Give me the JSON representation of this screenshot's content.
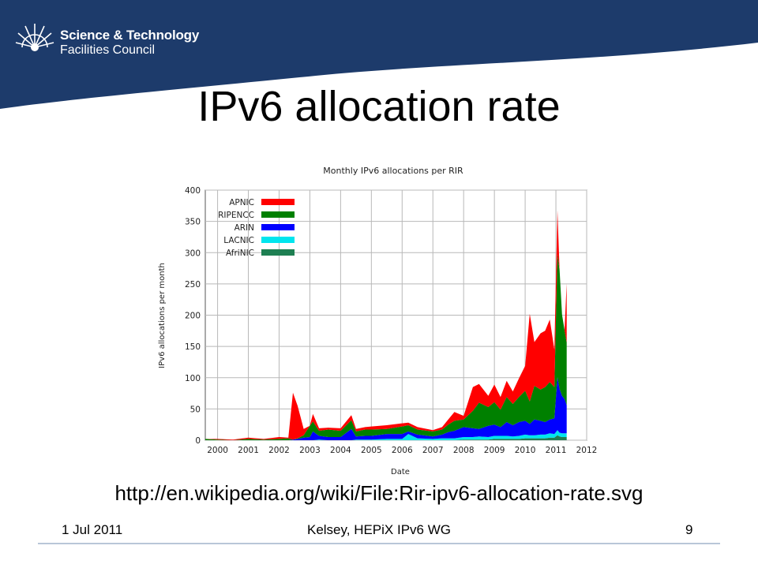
{
  "header": {
    "org_line1": "Science & Technology",
    "org_line2": "Facilities Council",
    "banner_color": "#1d3b6b",
    "logo_icon": "sunburst-logo-icon"
  },
  "slide": {
    "title": "IPv6 allocation rate",
    "url": "http://en.wikipedia.org/wiki/File:Rir-ipv6-allocation-rate.svg"
  },
  "footer": {
    "date": "1 Jul 2011",
    "center": "Kelsey, HEPiX IPv6 WG",
    "page": "9"
  },
  "chart_data": {
    "type": "area",
    "stacked": true,
    "title": "Monthly IPv6 allocations per RIR",
    "xlabel": "Date",
    "ylabel": "IPv6 allocations per month",
    "xlim": [
      1999.6,
      2012
    ],
    "ylim": [
      0,
      400
    ],
    "xticks": [
      "2000",
      "2001",
      "2002",
      "2003",
      "2004",
      "2005",
      "2006",
      "2007",
      "2008",
      "2009",
      "2010",
      "2011",
      "2012"
    ],
    "yticks": [
      "0",
      "50",
      "100",
      "150",
      "200",
      "250",
      "300",
      "350",
      "400"
    ],
    "grid": true,
    "legend_position": "top-left",
    "x": [
      1999.6,
      2000,
      2000.5,
      2001,
      2001.5,
      2002,
      2002.3,
      2002.45,
      2002.6,
      2002.8,
      2003,
      2003.1,
      2003.3,
      2003.6,
      2004,
      2004.35,
      2004.5,
      2004.8,
      2005,
      2005.5,
      2006,
      2006.2,
      2006.5,
      2007,
      2007.3,
      2007.5,
      2007.7,
      2008,
      2008.3,
      2008.5,
      2008.8,
      2009,
      2009.2,
      2009.4,
      2009.6,
      2009.8,
      2010,
      2010.15,
      2010.3,
      2010.5,
      2010.65,
      2010.8,
      2010.95,
      2011.05,
      2011.12,
      2011.2,
      2011.28,
      2011.35
    ],
    "series": [
      {
        "name": "AfriNIC",
        "color": "#1e7f52",
        "values": [
          0,
          0,
          0,
          0,
          0,
          0,
          0,
          0,
          0,
          0,
          0,
          0,
          0,
          0,
          0,
          0,
          0,
          0,
          0,
          0,
          0,
          0,
          0,
          0,
          0,
          0,
          0,
          1,
          1,
          1,
          1,
          2,
          2,
          2,
          2,
          2,
          3,
          3,
          3,
          3,
          3,
          4,
          4,
          8,
          6,
          5,
          5,
          5
        ]
      },
      {
        "name": "LACNIC",
        "color": "#00e5ee",
        "values": [
          0,
          0,
          0,
          0,
          0,
          0,
          0,
          0,
          0,
          0,
          0,
          0,
          1,
          0,
          0,
          0,
          1,
          1,
          1,
          2,
          2,
          10,
          3,
          2,
          3,
          3,
          3,
          4,
          4,
          5,
          4,
          5,
          5,
          5,
          4,
          5,
          6,
          5,
          5,
          6,
          6,
          7,
          6,
          8,
          6,
          6,
          6,
          6
        ]
      },
      {
        "name": "ARIN",
        "color": "#0000ff",
        "values": [
          0,
          0,
          0,
          0,
          0,
          0,
          0,
          1,
          2,
          4,
          5,
          14,
          6,
          5,
          5,
          18,
          5,
          6,
          6,
          8,
          8,
          4,
          6,
          4,
          6,
          10,
          12,
          16,
          14,
          12,
          18,
          18,
          14,
          22,
          18,
          22,
          22,
          18,
          25,
          22,
          20,
          22,
          25,
          85,
          70,
          60,
          55,
          45
        ]
      },
      {
        "name": "RIPENCC",
        "color": "#008000",
        "values": [
          2,
          1,
          0,
          2,
          1,
          2,
          3,
          0,
          1,
          4,
          18,
          16,
          8,
          12,
          10,
          14,
          8,
          10,
          10,
          8,
          12,
          10,
          8,
          8,
          8,
          12,
          16,
          12,
          28,
          42,
          30,
          36,
          28,
          40,
          34,
          40,
          48,
          36,
          54,
          50,
          56,
          60,
          50,
          197,
          190,
          130,
          110,
          100
        ]
      },
      {
        "name": "APNIC",
        "color": "#ff0000",
        "values": [
          0,
          1,
          1,
          2,
          1,
          3,
          1,
          75,
          52,
          10,
          0,
          12,
          4,
          3,
          4,
          8,
          4,
          4,
          5,
          6,
          5,
          4,
          4,
          2,
          4,
          8,
          14,
          6,
          38,
          30,
          18,
          28,
          20,
          26,
          20,
          30,
          40,
          140,
          70,
          90,
          90,
          100,
          60,
          70,
          0,
          0,
          0,
          95
        ]
      }
    ]
  }
}
